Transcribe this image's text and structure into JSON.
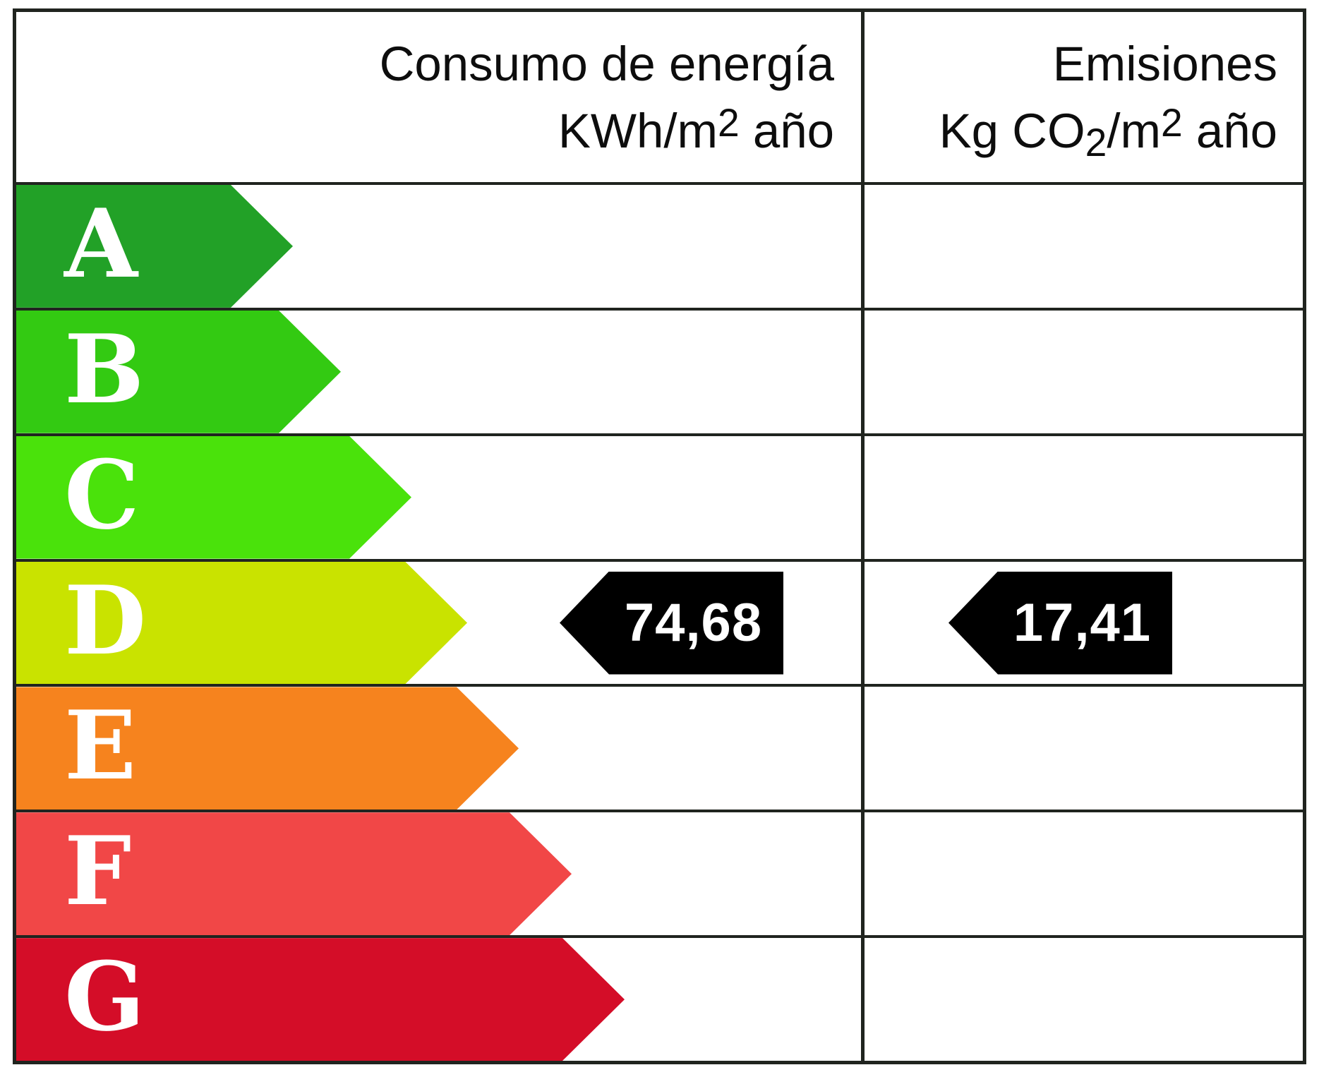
{
  "headers": {
    "energy": {
      "line1": "Consumo de energía",
      "line2_pre": "KWh/m",
      "line2_sup": "2",
      "line2_post": " año"
    },
    "emissions": {
      "line1": "Emisiones",
      "line2_pre": "Kg CO",
      "line2_sub": "2",
      "line2_mid": "/m",
      "line2_sup": "2",
      "line2_post": " año"
    }
  },
  "ratings": [
    {
      "letter": "A",
      "color": "#22a127"
    },
    {
      "letter": "B",
      "color": "#33ca12"
    },
    {
      "letter": "C",
      "color": "#4ae20b"
    },
    {
      "letter": "D",
      "color": "#c9e300"
    },
    {
      "letter": "E",
      "color": "#f6831e"
    },
    {
      "letter": "F",
      "color": "#f14747"
    },
    {
      "letter": "G",
      "color": "#d40d28"
    }
  ],
  "markers": {
    "energy_value": "74,68",
    "emissions_value": "17,41",
    "rating_row": "D",
    "color": "#000000",
    "text_color": "#ffffff"
  },
  "chart_data": {
    "type": "bar",
    "title": "",
    "xlabel": "",
    "ylabel": "",
    "categories": [
      "A",
      "B",
      "C",
      "D",
      "E",
      "F",
      "G"
    ],
    "values": [
      0.33,
      0.38,
      0.47,
      0.54,
      0.6,
      0.66,
      0.72
    ],
    "bar_colors": [
      "#22a127",
      "#33ca12",
      "#4ae20b",
      "#c9e300",
      "#f6831e",
      "#f14747",
      "#d40d28"
    ],
    "columns": [
      "Consumo de energía KWh/m2 año",
      "Emisiones Kg CO2/m2 año"
    ],
    "annotations": [
      {
        "column": "Consumo de energía KWh/m2 año",
        "label": "74,68",
        "value": 74.68,
        "rating": "D"
      },
      {
        "column": "Emisiones Kg CO2/m2 año",
        "label": "17,41",
        "value": 17.41,
        "rating": "D"
      }
    ],
    "legend": false,
    "grid": true
  }
}
